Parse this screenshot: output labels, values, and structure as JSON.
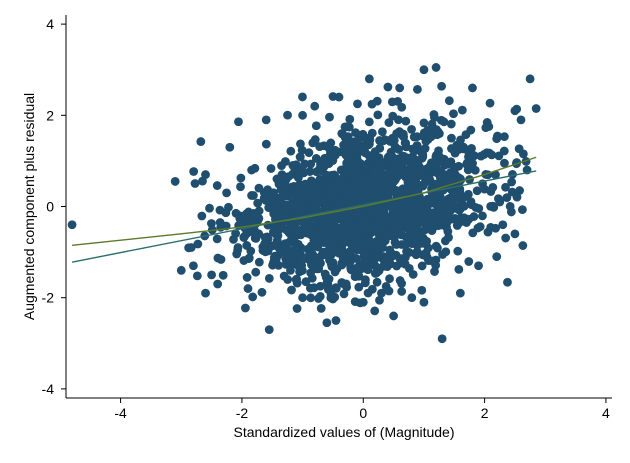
{
  "chart_data": {
    "type": "scatter",
    "title": "",
    "xlabel": "Standardized values of (Magnitude)",
    "ylabel": "Augmented component plus residual",
    "xlim": [
      -4.9,
      4.1
    ],
    "ylim": [
      -4.2,
      4.2
    ],
    "xticks": [
      -4,
      -2,
      0,
      2,
      4
    ],
    "xtick_labels": [
      "-4",
      "-2",
      "0",
      "2",
      "4"
    ],
    "yticks": [
      -4,
      -2,
      0,
      2,
      4
    ],
    "ytick_labels": [
      "-4",
      "-2",
      "0",
      "2",
      "4"
    ],
    "grid": false,
    "legend": "none",
    "colors": {
      "points": "#1f4e6e",
      "linear_fit": "#2c6e6e",
      "smooth_fit": "#5b7a2a"
    },
    "series": [
      {
        "kind": "points",
        "points": [
          [
            -4.8,
            -0.4
          ],
          [
            -3.1,
            0.55
          ],
          [
            -3.0,
            -1.4
          ],
          [
            -2.8,
            -1.3
          ],
          [
            -2.6,
            -1.9
          ],
          [
            -2.4,
            -1.7
          ],
          [
            -1.55,
            -2.7
          ],
          [
            -1.2,
            -1.4
          ],
          [
            -0.6,
            -2.55
          ],
          [
            -0.45,
            -2.5
          ],
          [
            0.3,
            -1.9
          ],
          [
            0.5,
            -2.4
          ],
          [
            0.8,
            -2.0
          ],
          [
            1.3,
            -2.9
          ],
          [
            1.6,
            -1.9
          ],
          [
            1.9,
            -1.3
          ],
          [
            2.2,
            -1.1
          ],
          [
            2.5,
            -0.6
          ],
          [
            2.7,
            0.8
          ],
          [
            2.6,
            1.9
          ],
          [
            2.75,
            2.8
          ],
          [
            2.85,
            2.15
          ],
          [
            2.5,
            2.1
          ],
          [
            1.2,
            3.05
          ],
          [
            1.0,
            3.0
          ],
          [
            0.1,
            2.8
          ],
          [
            -0.4,
            2.4
          ],
          [
            -1.0,
            2.0
          ],
          [
            -1.6,
            1.9
          ],
          [
            -2.2,
            1.3
          ],
          [
            -2.6,
            0.7
          ],
          [
            -2.5,
            -1.5
          ],
          [
            -1.9,
            -1.8
          ],
          [
            -1.0,
            -2.0
          ],
          [
            0.0,
            -2.1
          ],
          [
            1.0,
            -2.1
          ],
          [
            2.3,
            -0.4
          ],
          [
            1.8,
            2.6
          ],
          [
            0.6,
            2.6
          ],
          [
            -0.8,
            2.2
          ]
        ]
      },
      {
        "kind": "linear_fit",
        "x": [
          -4.8,
          2.85
        ],
        "y": [
          -1.22,
          0.78
        ]
      },
      {
        "kind": "smooth_fit",
        "x": [
          -4.8,
          -3.0,
          -2.0,
          -1.0,
          0.0,
          1.0,
          2.0,
          2.85
        ],
        "y": [
          -0.85,
          -0.6,
          -0.45,
          -0.25,
          0.0,
          0.3,
          0.7,
          1.08
        ]
      }
    ]
  }
}
